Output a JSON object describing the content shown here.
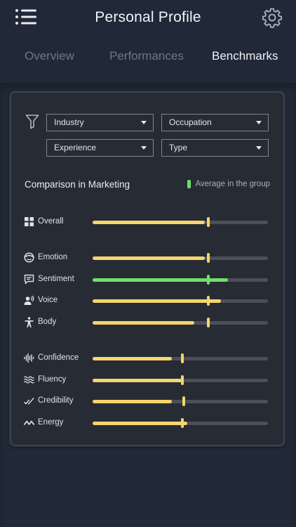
{
  "header": {
    "title": "Personal Profile",
    "menu_icon": "hamburger-menu-icon",
    "settings_icon": "gear-icon"
  },
  "tabs": [
    {
      "label": "Overview",
      "active": false
    },
    {
      "label": "Performances",
      "active": false
    },
    {
      "label": "Benchmarks",
      "active": true
    }
  ],
  "filters": {
    "icon": "funnel-filter-icon",
    "selects": [
      {
        "label": "Industry"
      },
      {
        "label": "Occupation"
      },
      {
        "label": "Experience"
      },
      {
        "label": "Type"
      }
    ]
  },
  "comparison": {
    "title": "Comparison in Marketing",
    "legend_label": "Average in the group",
    "legend_color": "#6fe06a"
  },
  "colors": {
    "bar": "#f5d56c",
    "highlight": "#6fe06a",
    "track": "#4b4f57"
  },
  "metrics": [
    {
      "label": "Overall",
      "icon": "grid-icon",
      "value": 0.64,
      "average": 0.66,
      "highlight": false
    },
    {
      "label": "Emotion",
      "icon": "face-icon",
      "value": 0.64,
      "average": 0.66,
      "highlight": false
    },
    {
      "label": "Sentiment",
      "icon": "speech-bubble-icon",
      "value": 0.77,
      "average": 0.66,
      "highlight": true
    },
    {
      "label": "Voice",
      "icon": "voice-speaker-icon",
      "value": 0.73,
      "average": 0.66,
      "highlight": false
    },
    {
      "label": "Body",
      "icon": "body-figure-icon",
      "value": 0.58,
      "average": 0.66,
      "highlight": false
    },
    {
      "label": "Confidence",
      "icon": "waveform-icon",
      "value": 0.45,
      "average": 0.51,
      "highlight": false
    },
    {
      "label": "Fluency",
      "icon": "waves-icon",
      "value": 0.51,
      "average": 0.51,
      "highlight": false
    },
    {
      "label": "Credibility",
      "icon": "check-marks-icon",
      "value": 0.45,
      "average": 0.52,
      "highlight": false
    },
    {
      "label": "Energy",
      "icon": "zigzag-icon",
      "value": 0.54,
      "average": 0.51,
      "highlight": false
    }
  ]
}
